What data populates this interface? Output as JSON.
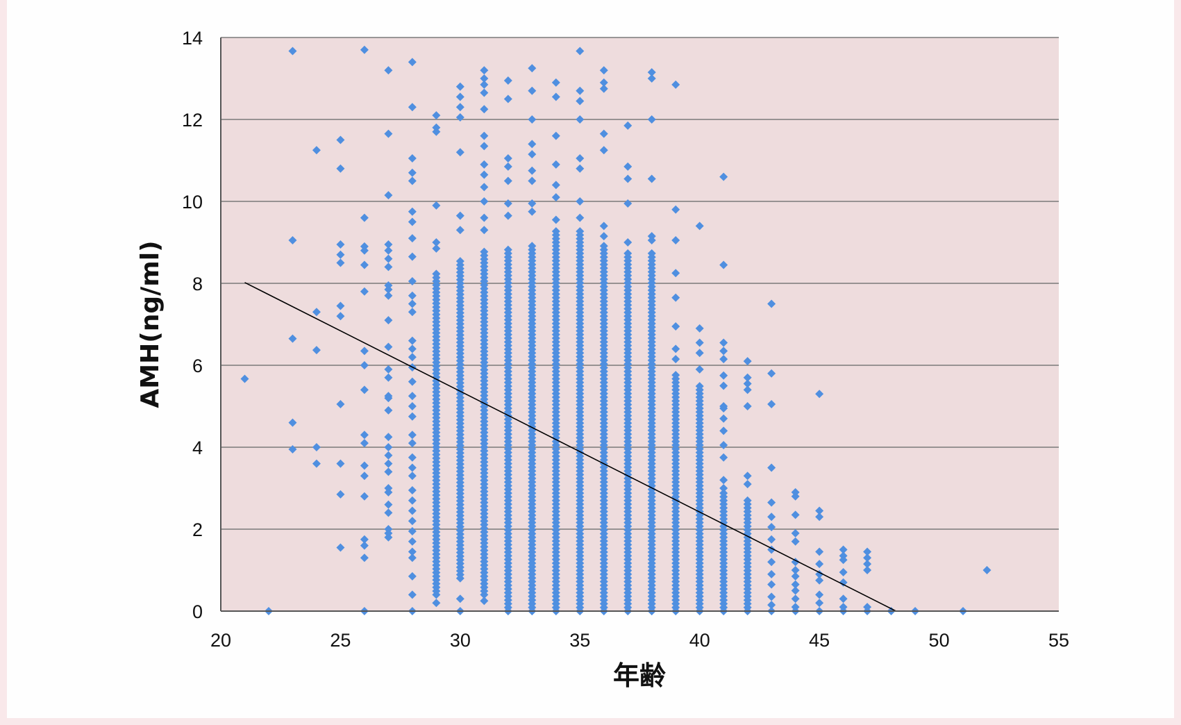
{
  "chart_data": {
    "type": "scatter",
    "xlabel": "年齢",
    "ylabel": "AMH(ng/ml)",
    "xlim": [
      20,
      55
    ],
    "ylim": [
      0,
      14
    ],
    "x_ticks": [
      "20",
      "25",
      "30",
      "35",
      "40",
      "45",
      "50",
      "55"
    ],
    "y_ticks": [
      "0",
      "2",
      "4",
      "6",
      "8",
      "10",
      "12",
      "14"
    ],
    "grid": "horizontal",
    "plot_background": "#eedcdd",
    "point_color": "#4f8fe0",
    "trendline": {
      "type": "linear",
      "x": [
        21,
        48.2
      ],
      "y": [
        8.02,
        0
      ],
      "color": "#000000"
    },
    "points": [
      [
        21,
        5.67
      ],
      [
        22,
        0.0
      ],
      [
        23,
        13.67
      ],
      [
        23,
        9.05
      ],
      [
        23,
        6.65
      ],
      [
        23,
        4.6
      ],
      [
        23,
        3.95
      ],
      [
        24,
        11.25
      ],
      [
        24,
        7.3
      ],
      [
        24,
        6.37
      ],
      [
        24,
        4.0
      ],
      [
        24,
        3.6
      ],
      [
        25,
        11.5
      ],
      [
        25,
        10.8
      ],
      [
        25,
        8.95
      ],
      [
        25,
        8.7
      ],
      [
        25,
        8.5
      ],
      [
        25,
        7.45
      ],
      [
        25,
        7.2
      ],
      [
        25,
        5.05
      ],
      [
        25,
        3.6
      ],
      [
        25,
        2.85
      ],
      [
        25,
        1.55
      ],
      [
        26,
        13.7
      ],
      [
        26,
        9.6
      ],
      [
        26,
        8.9
      ],
      [
        26,
        8.8
      ],
      [
        26,
        8.45
      ],
      [
        26,
        7.8
      ],
      [
        26,
        6.35
      ],
      [
        26,
        6.0
      ],
      [
        26,
        5.4
      ],
      [
        26,
        4.3
      ],
      [
        26,
        4.1
      ],
      [
        26,
        3.55
      ],
      [
        26,
        3.3
      ],
      [
        26,
        2.8
      ],
      [
        26,
        1.75
      ],
      [
        26,
        1.6
      ],
      [
        26,
        1.3
      ],
      [
        26,
        0.0
      ],
      [
        27,
        13.2
      ],
      [
        27,
        11.65
      ],
      [
        27,
        10.15
      ],
      [
        27,
        8.95
      ],
      [
        27,
        8.8
      ],
      [
        27,
        8.6
      ],
      [
        27,
        8.4
      ],
      [
        27,
        7.95
      ],
      [
        27,
        7.85
      ],
      [
        27,
        7.7
      ],
      [
        27,
        7.1
      ],
      [
        27,
        6.45
      ],
      [
        27,
        5.9
      ],
      [
        27,
        5.7
      ],
      [
        27,
        5.25
      ],
      [
        27,
        5.2
      ],
      [
        27,
        4.9
      ],
      [
        27,
        4.25
      ],
      [
        27,
        4.0
      ],
      [
        27,
        3.8
      ],
      [
        27,
        3.6
      ],
      [
        27,
        3.4
      ],
      [
        27,
        3.0
      ],
      [
        27,
        2.9
      ],
      [
        27,
        2.6
      ],
      [
        27,
        2.4
      ],
      [
        27,
        2.0
      ],
      [
        27,
        1.9
      ],
      [
        27,
        1.8
      ],
      [
        28,
        13.4
      ],
      [
        28,
        12.3
      ],
      [
        28,
        11.05
      ],
      [
        28,
        10.7
      ],
      [
        28,
        10.5
      ],
      [
        28,
        9.75
      ],
      [
        28,
        9.5
      ],
      [
        28,
        9.1
      ],
      [
        28,
        8.65
      ],
      [
        28,
        8.05
      ],
      [
        28,
        7.7
      ],
      [
        28,
        7.5
      ],
      [
        28,
        7.3
      ],
      [
        28,
        6.6
      ],
      [
        28,
        6.4
      ],
      [
        28,
        6.2
      ],
      [
        28,
        5.95
      ],
      [
        28,
        5.6
      ],
      [
        28,
        5.25
      ],
      [
        28,
        5.0
      ],
      [
        28,
        4.75
      ],
      [
        28,
        4.3
      ],
      [
        28,
        4.1
      ],
      [
        28,
        3.75
      ],
      [
        28,
        3.5
      ],
      [
        28,
        3.3
      ],
      [
        28,
        2.95
      ],
      [
        28,
        2.7
      ],
      [
        28,
        2.45
      ],
      [
        28,
        2.2
      ],
      [
        28,
        1.95
      ],
      [
        28,
        1.7
      ],
      [
        28,
        1.45
      ],
      [
        28,
        1.3
      ],
      [
        28,
        0.85
      ],
      [
        28,
        0.4
      ],
      [
        28,
        0.0
      ],
      [
        29,
        12.1
      ],
      [
        29,
        11.8
      ],
      [
        29,
        11.7
      ],
      [
        29,
        9.9
      ],
      [
        29,
        9.0
      ],
      [
        29,
        8.85
      ],
      [
        29,
        0.2
      ],
      [
        30,
        12.8
      ],
      [
        30,
        12.55
      ],
      [
        30,
        12.3
      ],
      [
        30,
        12.05
      ],
      [
        30,
        11.2
      ],
      [
        30,
        9.65
      ],
      [
        30,
        9.3
      ],
      [
        30,
        0.3
      ],
      [
        30,
        0.0
      ],
      [
        31,
        13.2
      ],
      [
        31,
        13.0
      ],
      [
        31,
        12.85
      ],
      [
        31,
        12.65
      ],
      [
        31,
        12.25
      ],
      [
        31,
        11.6
      ],
      [
        31,
        11.35
      ],
      [
        31,
        10.9
      ],
      [
        31,
        10.65
      ],
      [
        31,
        10.35
      ],
      [
        31,
        10.0
      ],
      [
        31,
        9.6
      ],
      [
        31,
        9.3
      ],
      [
        31,
        0.25
      ],
      [
        32,
        12.95
      ],
      [
        32,
        12.5
      ],
      [
        32,
        11.05
      ],
      [
        32,
        10.85
      ],
      [
        32,
        10.5
      ],
      [
        32,
        9.95
      ],
      [
        32,
        9.65
      ],
      [
        32,
        0.0
      ],
      [
        33,
        13.25
      ],
      [
        33,
        12.7
      ],
      [
        33,
        12.0
      ],
      [
        33,
        11.4
      ],
      [
        33,
        11.15
      ],
      [
        33,
        10.75
      ],
      [
        33,
        10.5
      ],
      [
        33,
        9.95
      ],
      [
        33,
        9.75
      ],
      [
        33,
        0.0
      ],
      [
        34,
        12.9
      ],
      [
        34,
        12.55
      ],
      [
        34,
        11.6
      ],
      [
        34,
        10.9
      ],
      [
        34,
        10.4
      ],
      [
        34,
        10.1
      ],
      [
        34,
        9.55
      ],
      [
        34,
        0.0
      ],
      [
        35,
        13.67
      ],
      [
        35,
        12.7
      ],
      [
        35,
        12.45
      ],
      [
        35,
        12.0
      ],
      [
        35,
        11.05
      ],
      [
        35,
        10.8
      ],
      [
        35,
        10.0
      ],
      [
        35,
        9.6
      ],
      [
        35,
        0.0
      ],
      [
        36,
        13.2
      ],
      [
        36,
        12.9
      ],
      [
        36,
        12.75
      ],
      [
        36,
        11.65
      ],
      [
        36,
        11.25
      ],
      [
        36,
        9.4
      ],
      [
        36,
        9.15
      ],
      [
        36,
        0.0
      ],
      [
        37,
        11.85
      ],
      [
        37,
        10.85
      ],
      [
        37,
        10.55
      ],
      [
        37,
        9.95
      ],
      [
        37,
        9.0
      ],
      [
        37,
        0.0
      ],
      [
        38,
        13.15
      ],
      [
        38,
        13.0
      ],
      [
        38,
        12.0
      ],
      [
        38,
        10.55
      ],
      [
        38,
        9.15
      ],
      [
        38,
        9.05
      ],
      [
        38,
        0.0
      ],
      [
        39,
        12.85
      ],
      [
        39,
        9.8
      ],
      [
        39,
        9.05
      ],
      [
        39,
        8.25
      ],
      [
        39,
        7.65
      ],
      [
        39,
        6.95
      ],
      [
        39,
        6.4
      ],
      [
        39,
        6.15
      ],
      [
        39,
        0.0
      ],
      [
        40,
        9.4
      ],
      [
        40,
        6.9
      ],
      [
        40,
        6.55
      ],
      [
        40,
        6.3
      ],
      [
        40,
        5.9
      ],
      [
        40,
        0.0
      ],
      [
        41,
        10.6
      ],
      [
        41,
        8.45
      ],
      [
        41,
        6.55
      ],
      [
        41,
        6.35
      ],
      [
        41,
        6.15
      ],
      [
        41,
        5.75
      ],
      [
        41,
        5.5
      ],
      [
        41,
        5.0
      ],
      [
        41,
        4.95
      ],
      [
        41,
        4.7
      ],
      [
        41,
        4.4
      ],
      [
        41,
        4.05
      ],
      [
        41,
        3.75
      ],
      [
        41,
        3.2
      ],
      [
        41,
        3.0
      ],
      [
        41,
        0.0
      ],
      [
        42,
        6.1
      ],
      [
        42,
        5.7
      ],
      [
        42,
        5.55
      ],
      [
        42,
        5.4
      ],
      [
        42,
        5.0
      ],
      [
        42,
        3.3
      ],
      [
        42,
        3.1
      ],
      [
        42,
        2.7
      ],
      [
        42,
        0.0
      ],
      [
        43,
        7.5
      ],
      [
        43,
        5.8
      ],
      [
        43,
        5.05
      ],
      [
        43,
        3.5
      ],
      [
        43,
        2.65
      ],
      [
        43,
        2.3
      ],
      [
        43,
        2.05
      ],
      [
        43,
        1.75
      ],
      [
        43,
        1.5
      ],
      [
        43,
        1.2
      ],
      [
        43,
        0.9
      ],
      [
        43,
        0.65
      ],
      [
        43,
        0.35
      ],
      [
        43,
        0.15
      ],
      [
        43,
        0.0
      ],
      [
        44,
        2.9
      ],
      [
        44,
        2.8
      ],
      [
        44,
        2.35
      ],
      [
        44,
        1.9
      ],
      [
        44,
        1.7
      ],
      [
        44,
        1.2
      ],
      [
        44,
        1.0
      ],
      [
        44,
        0.85
      ],
      [
        44,
        0.65
      ],
      [
        44,
        0.5
      ],
      [
        44,
        0.3
      ],
      [
        44,
        0.1
      ],
      [
        44,
        0.0
      ],
      [
        45,
        5.3
      ],
      [
        45,
        2.45
      ],
      [
        45,
        2.3
      ],
      [
        45,
        1.45
      ],
      [
        45,
        1.15
      ],
      [
        45,
        0.9
      ],
      [
        45,
        0.75
      ],
      [
        45,
        0.4
      ],
      [
        45,
        0.2
      ],
      [
        45,
        0.0
      ],
      [
        46,
        1.5
      ],
      [
        46,
        1.35
      ],
      [
        46,
        1.25
      ],
      [
        46,
        0.95
      ],
      [
        46,
        0.7
      ],
      [
        46,
        0.3
      ],
      [
        46,
        0.1
      ],
      [
        46,
        0.0
      ],
      [
        47,
        1.45
      ],
      [
        47,
        1.3
      ],
      [
        47,
        1.15
      ],
      [
        47,
        1.0
      ],
      [
        47,
        0.1
      ],
      [
        47,
        0.0
      ],
      [
        48,
        0.0
      ],
      [
        49,
        0.0
      ],
      [
        51,
        0.0
      ],
      [
        52,
        1.0
      ]
    ],
    "dense_columns": [
      {
        "x": 29,
        "y_min": 0.4,
        "y_max": 8.3
      },
      {
        "x": 30,
        "y_min": 0.8,
        "y_max": 8.6
      },
      {
        "x": 31,
        "y_min": 0.4,
        "y_max": 8.8
      },
      {
        "x": 32,
        "y_min": 0.0,
        "y_max": 8.9
      },
      {
        "x": 33,
        "y_min": 0.0,
        "y_max": 8.95
      },
      {
        "x": 34,
        "y_min": 0.0,
        "y_max": 9.3
      },
      {
        "x": 35,
        "y_min": 0.0,
        "y_max": 9.3
      },
      {
        "x": 36,
        "y_min": 0.0,
        "y_max": 8.95
      },
      {
        "x": 37,
        "y_min": 0.0,
        "y_max": 8.8
      },
      {
        "x": 38,
        "y_min": 0.0,
        "y_max": 8.75
      },
      {
        "x": 39,
        "y_min": 0.0,
        "y_max": 5.8
      },
      {
        "x": 40,
        "y_min": 0.0,
        "y_max": 5.5
      },
      {
        "x": 41,
        "y_min": 0.0,
        "y_max": 2.9
      },
      {
        "x": 42,
        "y_min": 0.0,
        "y_max": 2.65
      }
    ]
  }
}
